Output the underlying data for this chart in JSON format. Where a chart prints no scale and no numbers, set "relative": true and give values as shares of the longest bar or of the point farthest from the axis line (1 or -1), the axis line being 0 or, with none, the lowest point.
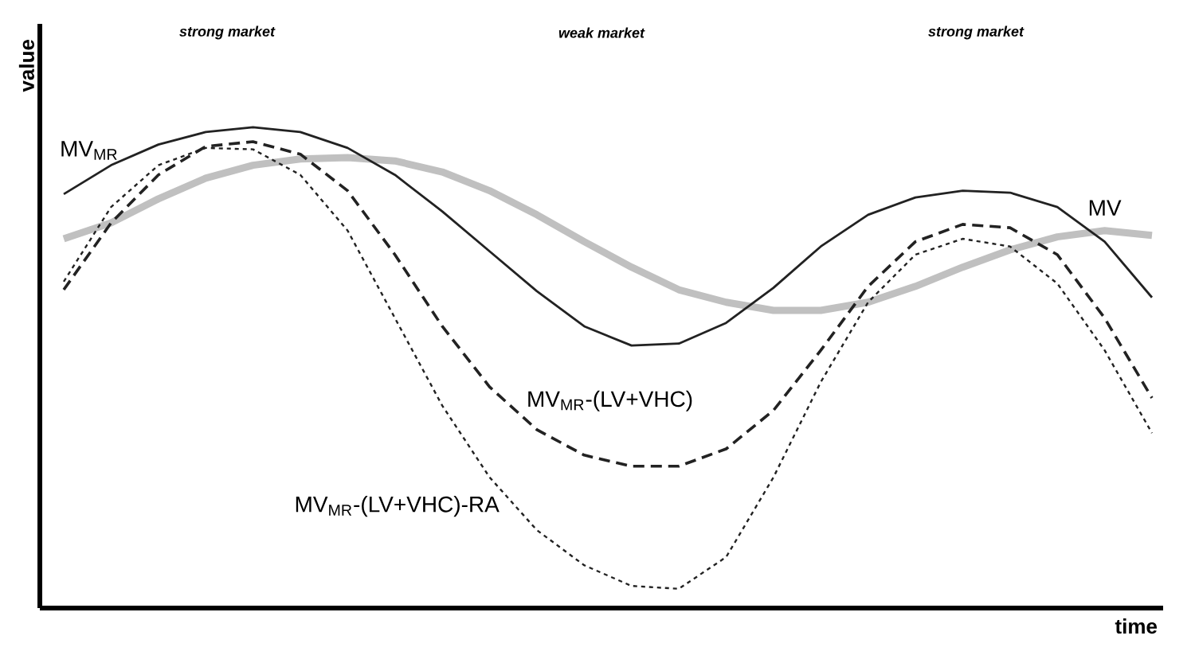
{
  "chart_data": {
    "type": "line",
    "relative": true,
    "xlabel": "time",
    "ylabel": "value",
    "annotations": [
      "strong market",
      "weak market",
      "strong market"
    ],
    "categories": [
      null,
      null,
      null,
      null,
      null,
      null,
      null,
      null,
      null,
      null,
      null,
      null,
      null,
      null,
      null,
      null,
      null,
      null,
      null,
      null,
      null,
      null,
      null,
      null
    ],
    "series": [
      {
        "name": "MV",
        "color": "#c0c0c0",
        "line_style": "solid",
        "values": [
          0.768,
          0.801,
          0.851,
          0.894,
          0.921,
          0.934,
          0.937,
          0.93,
          0.907,
          0.868,
          0.818,
          0.762,
          0.709,
          0.662,
          0.636,
          0.619,
          0.619,
          0.636,
          0.669,
          0.709,
          0.745,
          0.772,
          0.785,
          0.775
        ]
      },
      {
        "name": "MV$_{MR}$",
        "color": "#222222",
        "line_style": "solid",
        "values": [
          0.861,
          0.921,
          0.964,
          0.99,
          1.0,
          0.99,
          0.957,
          0.901,
          0.825,
          0.742,
          0.659,
          0.586,
          0.546,
          0.55,
          0.593,
          0.666,
          0.752,
          0.818,
          0.854,
          0.868,
          0.864,
          0.834,
          0.762,
          0.646
        ]
      },
      {
        "name": "MV$_{MR}$-(LV+VHC)",
        "color": "#222222",
        "line_style": "dashed",
        "values": [
          0.662,
          0.801,
          0.901,
          0.96,
          0.97,
          0.944,
          0.868,
          0.735,
          0.586,
          0.46,
          0.371,
          0.318,
          0.295,
          0.295,
          0.331,
          0.411,
          0.536,
          0.669,
          0.762,
          0.798,
          0.791,
          0.735,
          0.603,
          0.437
        ]
      },
      {
        "name": "MV$_{MR}$-(LV+VHC)-RA",
        "color": "#222222",
        "line_style": "dotted",
        "values": [
          0.679,
          0.834,
          0.921,
          0.957,
          0.954,
          0.901,
          0.785,
          0.603,
          0.421,
          0.272,
          0.162,
          0.089,
          0.046,
          0.04,
          0.106,
          0.272,
          0.47,
          0.636,
          0.735,
          0.768,
          0.752,
          0.675,
          0.536,
          0.364
        ]
      }
    ]
  }
}
